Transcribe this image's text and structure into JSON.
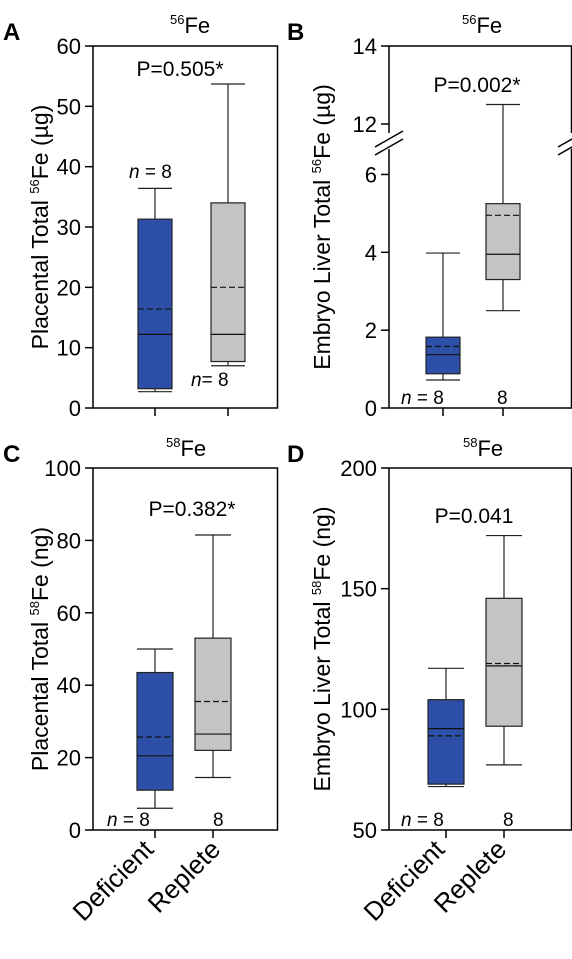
{
  "colors": {
    "deficient": "#2e4fa8",
    "replete": "#c4c4c4"
  },
  "categories": [
    "Deficient",
    "Replete"
  ],
  "chart_data": [
    {
      "panel": "A",
      "type": "box",
      "title_sup": "56",
      "title": "Fe",
      "ylabel_pre": "Placental Total ",
      "ylabel_sup": "56",
      "ylabel_post": "Fe (µg)",
      "ylim": [
        0,
        60
      ],
      "yticks": [
        0,
        10,
        20,
        30,
        40,
        50,
        60
      ],
      "annotation": "P=0.505*",
      "categories": [
        "Deficient",
        "Replete"
      ],
      "boxes": [
        {
          "name": "Deficient",
          "min": 2.7,
          "q1": 3.2,
          "median": 12.2,
          "mean": 16.4,
          "q3": 31.3,
          "max": 36.4
        },
        {
          "name": "Replete",
          "min": 7.0,
          "q1": 7.7,
          "median": 12.2,
          "mean": 20.0,
          "q3": 34.0,
          "max": 53.7
        }
      ],
      "n": [
        {
          "italic": "n",
          "rest": " = 8"
        },
        {
          "italic": "n",
          "rest": "= 8"
        }
      ]
    },
    {
      "panel": "B",
      "type": "box",
      "title_sup": "56",
      "title": "Fe",
      "ylabel_pre": "Embryo Liver Total ",
      "ylabel_sup": "56",
      "ylabel_post": "Fe (µg)",
      "ylim": [
        0,
        14
      ],
      "axis_break": [
        6.5,
        12
      ],
      "yticks": [
        0,
        2,
        4,
        6,
        12,
        14
      ],
      "annotation": "P=0.002*",
      "categories": [
        "Deficient",
        "Replete"
      ],
      "boxes": [
        {
          "name": "Deficient",
          "min": 0.72,
          "q1": 0.88,
          "median": 1.37,
          "mean": 1.58,
          "q3": 1.82,
          "max": 3.98
        },
        {
          "name": "Replete",
          "min": 2.5,
          "q1": 3.3,
          "median": 3.95,
          "mean": 4.95,
          "q3": 5.25,
          "max": 12.5
        }
      ],
      "n": [
        {
          "italic": "n",
          "rest": " = 8"
        },
        {
          "italic": "",
          "rest": "8"
        }
      ]
    },
    {
      "panel": "C",
      "type": "box",
      "title_sup": "58",
      "title": "Fe",
      "ylabel_pre": "Placental Total ",
      "ylabel_sup": "58",
      "ylabel_post": "Fe (ng)",
      "ylim": [
        0,
        100
      ],
      "yticks": [
        0,
        20,
        40,
        60,
        80,
        100
      ],
      "annotation": "P=0.382*",
      "categories": [
        "Deficient",
        "Replete"
      ],
      "boxes": [
        {
          "name": "Deficient",
          "min": 6.0,
          "q1": 11.0,
          "median": 20.5,
          "mean": 25.7,
          "q3": 43.5,
          "max": 50.0
        },
        {
          "name": "Replete",
          "min": 14.5,
          "q1": 22.0,
          "median": 26.5,
          "mean": 35.5,
          "q3": 53.0,
          "max": 81.5
        }
      ],
      "n": [
        {
          "italic": "n",
          "rest": " = 8"
        },
        {
          "italic": "",
          "rest": "8"
        }
      ]
    },
    {
      "panel": "D",
      "type": "box",
      "title_sup": "58",
      "title": "Fe",
      "ylabel_pre": "Embryo Liver Total ",
      "ylabel_sup": "58",
      "ylabel_post": "Fe (ng)",
      "ylim": [
        50,
        200
      ],
      "yticks": [
        50,
        100,
        150,
        200
      ],
      "annotation": "P=0.041",
      "categories": [
        "Deficient",
        "Replete"
      ],
      "boxes": [
        {
          "name": "Deficient",
          "min": 68,
          "q1": 69,
          "median": 92,
          "mean": 89,
          "q3": 104,
          "max": 117
        },
        {
          "name": "Replete",
          "min": 77,
          "q1": 93,
          "median": 118,
          "mean": 119,
          "q3": 146,
          "max": 172
        }
      ],
      "n": [
        {
          "italic": "n",
          "rest": " = 8"
        },
        {
          "italic": "",
          "rest": "8"
        }
      ]
    }
  ]
}
